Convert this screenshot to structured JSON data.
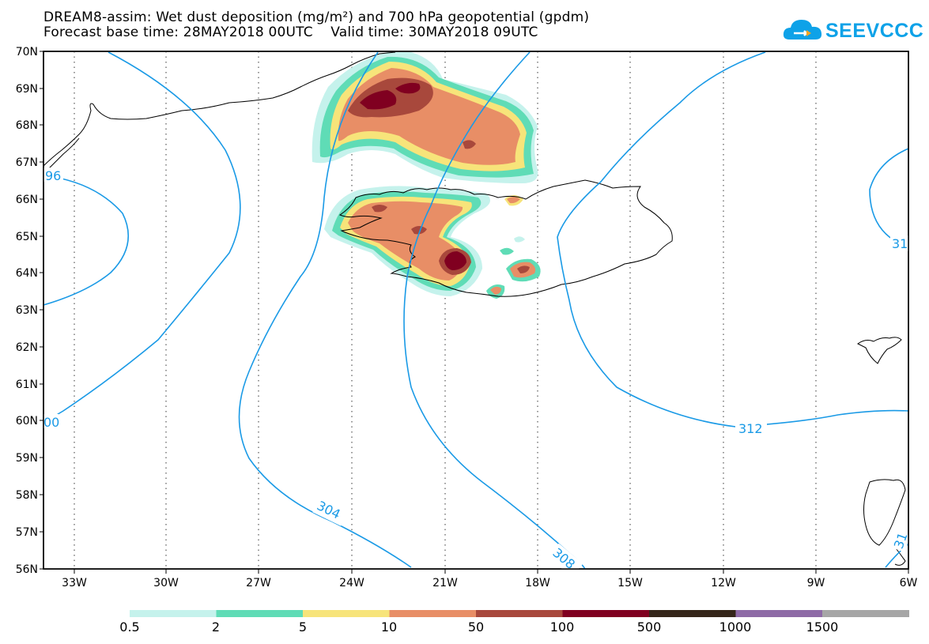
{
  "header": {
    "title_line1": "DREAM8-assim: Wet dust deposition (mg/m²) and 700 hPa geopotential (gpdm)",
    "title_line2": "Forecast base time: 28MAY2018 00UTC    Valid time: 30MAY2018 09UTC",
    "logo_text": "SEEVCCC",
    "logo_color": "#0ea2e8"
  },
  "map": {
    "region": "Iceland / North Atlantic",
    "lon_range": [
      -34,
      -6
    ],
    "lat_range": [
      56,
      70
    ],
    "lat_labels": [
      "70N",
      "69N",
      "68N",
      "67N",
      "66N",
      "65N",
      "64N",
      "63N",
      "62N",
      "61N",
      "60N",
      "59N",
      "58N",
      "57N",
      "56N"
    ],
    "lon_labels": [
      "33W",
      "30W",
      "27W",
      "24W",
      "21W",
      "18W",
      "15W",
      "12W",
      "9W",
      "6W"
    ],
    "contour_color": "#1a9ae6",
    "contour_labels": [
      "96",
      "00",
      "304",
      "308",
      "312",
      "31",
      "31"
    ]
  },
  "colorbar": {
    "colors": [
      "#c5f2ec",
      "#5fdcb6",
      "#f7e47a",
      "#e88e66",
      "#a8483c",
      "#800020",
      "#35261a",
      "#8e6aa6",
      "#a6a6a6"
    ],
    "labels": [
      "0.5",
      "2",
      "5",
      "10",
      "50",
      "100",
      "500",
      "1000",
      "1500"
    ]
  }
}
